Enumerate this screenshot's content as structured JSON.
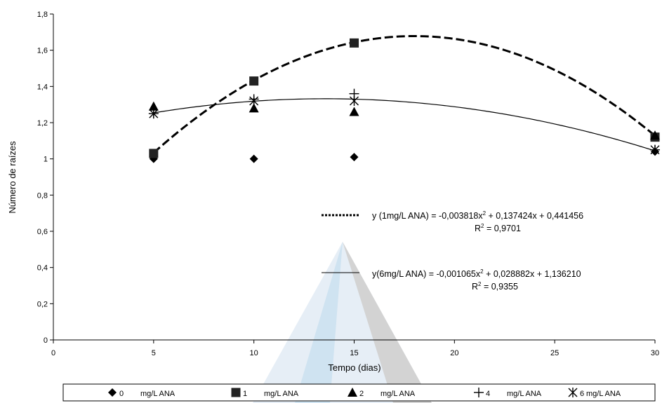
{
  "chart_data": {
    "type": "scatter",
    "xlabel": "Tempo (dias)",
    "ylabel": "Número de raízes",
    "xlim": [
      0,
      30
    ],
    "ylim": [
      0,
      1.8
    ],
    "x_ticks": [
      "0",
      "5",
      "10",
      "15",
      "20",
      "25",
      "30"
    ],
    "y_ticks": [
      "0",
      "0,2",
      "0,4",
      "0,6",
      "0,8",
      "1",
      "1,2",
      "1,4",
      "1,6",
      "1,8"
    ],
    "grid": false,
    "legend_position": "bottom",
    "series": [
      {
        "name": "0",
        "unit": "mg/L ANA",
        "marker": "diamond",
        "x": [
          5,
          10,
          15,
          30
        ],
        "y": [
          1.0,
          1.0,
          1.01,
          1.04
        ]
      },
      {
        "name": "1",
        "unit": "mg/L ANA",
        "marker": "square",
        "x": [
          5,
          10,
          15,
          30
        ],
        "y": [
          1.03,
          1.43,
          1.64,
          1.12
        ]
      },
      {
        "name": "2",
        "unit": "mg/L ANA",
        "marker": "triangle",
        "x": [
          5,
          10,
          15,
          30
        ],
        "y": [
          1.29,
          1.28,
          1.26,
          1.13
        ]
      },
      {
        "name": "4",
        "unit": "mg/L ANA",
        "marker": "plus",
        "x": [
          5,
          10,
          15,
          30
        ],
        "y": [
          1.25,
          1.33,
          1.36,
          1.05
        ]
      },
      {
        "name": "6",
        "unit": "mg/L ANA",
        "marker": "asterisk",
        "x": [
          5,
          10,
          15,
          30
        ],
        "y": [
          1.25,
          1.32,
          1.32,
          1.05
        ]
      }
    ],
    "trendlines": [
      {
        "series": "1",
        "style": "dashed",
        "coefficients": [
          -0.003818,
          0.137424,
          0.441456
        ],
        "x_range": [
          5,
          30
        ],
        "equation_prefix": "y (1mg/L ANA)  = -0,003818x",
        "equation_suffix": " + 0,137424x + 0,441456",
        "r2_prefix": "R",
        "r2_suffix": " = 0,9701"
      },
      {
        "series": "6",
        "style": "solid",
        "coefficients": [
          -0.001065,
          0.028882,
          1.13621
        ],
        "x_range": [
          5,
          30
        ],
        "equation_prefix": "y(6mg/L ANA) = -0,001065x",
        "equation_suffix": " + 0,028882x + 1,136210",
        "r2_prefix": "R",
        "r2_suffix": " = 0,9355"
      }
    ],
    "superscript": "2"
  }
}
